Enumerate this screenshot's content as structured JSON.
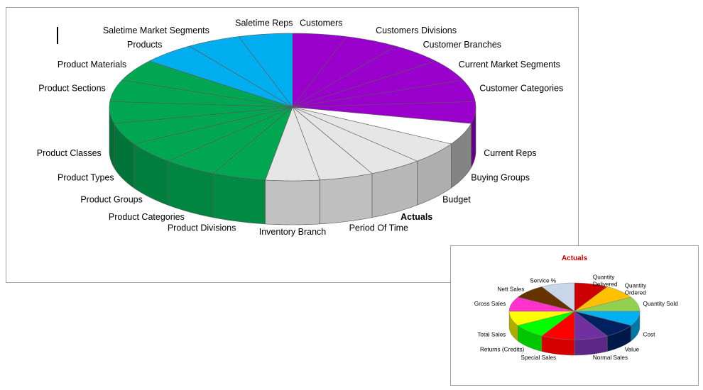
{
  "main_chart": {
    "chart_data": {
      "type": "pie",
      "style": "3d-exploded-none",
      "title": "",
      "slices": [
        {
          "label": "Customers",
          "value": 1,
          "color": "#9900cc"
        },
        {
          "label": "Customers Divisions",
          "value": 1,
          "color": "#9900cc"
        },
        {
          "label": "Customer Branches",
          "value": 1,
          "color": "#9900cc"
        },
        {
          "label": "Current Market Segments",
          "value": 1,
          "color": "#9900cc"
        },
        {
          "label": "Customer Categories",
          "value": 1,
          "color": "#9900cc"
        },
        {
          "label": "Current Reps",
          "value": 1,
          "color": "#9900cc"
        },
        {
          "label": "Buying Groups",
          "value": 1,
          "color": "#ffffff"
        },
        {
          "label": "Budget",
          "value": 1,
          "color": "#e6e6e6"
        },
        {
          "label": "Actuals",
          "value": 1,
          "color": "#e6e6e6"
        },
        {
          "label": "Period Of Time",
          "value": 1,
          "color": "#e6e6e6"
        },
        {
          "label": "Inventory Branch",
          "value": 1,
          "color": "#e6e6e6"
        },
        {
          "label": "Product Divisions",
          "value": 1,
          "color": "#00a651"
        },
        {
          "label": "Product Categories",
          "value": 1,
          "color": "#00a651"
        },
        {
          "label": "Product Groups",
          "value": 1,
          "color": "#00a651"
        },
        {
          "label": "Product Types",
          "value": 1,
          "color": "#00a651"
        },
        {
          "label": "Product Classes",
          "value": 1,
          "color": "#00a651"
        },
        {
          "label": "Product Sections",
          "value": 1,
          "color": "#00a651"
        },
        {
          "label": "Product Materials",
          "value": 1,
          "color": "#00a651"
        },
        {
          "label": "Products",
          "value": 1,
          "color": "#00aeef"
        },
        {
          "label": "Saletime Market Segments",
          "value": 1,
          "color": "#00aeef"
        },
        {
          "label": "Saletime Reps",
          "value": 1,
          "color": "#00aeef"
        }
      ],
      "highlight_label": "Actuals",
      "highlight_color": "#cc0000"
    }
  },
  "inset_chart": {
    "chart_data": {
      "type": "pie",
      "style": "3d",
      "title": "Actuals",
      "title_color": "#cc0000",
      "slices": [
        {
          "label": "Quantity Delivered",
          "value": 1,
          "color": "#cc0000"
        },
        {
          "label": "Quantity Ordered",
          "value": 1,
          "color": "#ffc000"
        },
        {
          "label": "Quantity Sold",
          "value": 1,
          "color": "#92d050"
        },
        {
          "label": "Cost",
          "value": 1,
          "color": "#00b0f0"
        },
        {
          "label": "Value",
          "value": 1,
          "color": "#002060"
        },
        {
          "label": "Normal Sales",
          "value": 1,
          "color": "#7030a0"
        },
        {
          "label": "Special Sales",
          "value": 1,
          "color": "#ff0000"
        },
        {
          "label": "Returns (Credits)",
          "value": 1,
          "color": "#00ff00"
        },
        {
          "label": "Total Sales",
          "value": 1,
          "color": "#ffff00"
        },
        {
          "label": "Gross Sales",
          "value": 1,
          "color": "#ff33cc"
        },
        {
          "label": "Nett Sales",
          "value": 1,
          "color": "#663300"
        },
        {
          "label": "Service %",
          "value": 1,
          "color": "#c9d6ea"
        }
      ]
    }
  }
}
